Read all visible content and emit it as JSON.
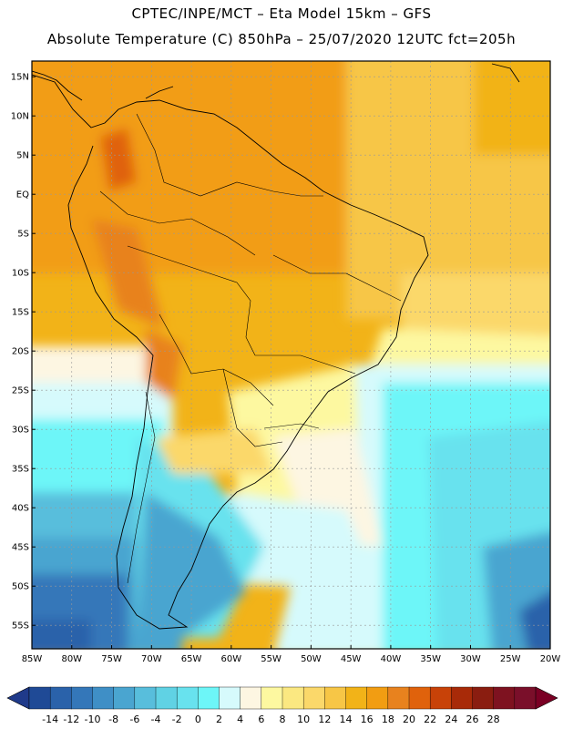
{
  "header": {
    "line1": "CPTEC/INPE/MCT –  Eta Model 15km – GFS",
    "line2": "Absolute Temperature (C) 850hPa – 25/07/2020 12UTC fct=205h"
  },
  "map": {
    "lon_range": [
      -85,
      -20
    ],
    "lat_range": [
      -58,
      17
    ],
    "lat_labels": [
      "15N",
      "10N",
      "5N",
      "EQ",
      "5S",
      "10S",
      "15S",
      "20S",
      "25S",
      "30S",
      "35S",
      "40S",
      "45S",
      "50S",
      "55S"
    ],
    "lat_values": [
      15,
      10,
      5,
      0,
      -5,
      -10,
      -15,
      -20,
      -25,
      -30,
      -35,
      -40,
      -45,
      -50,
      -55
    ],
    "lon_labels": [
      "85W",
      "80W",
      "75W",
      "70W",
      "65W",
      "60W",
      "55W",
      "50W",
      "45W",
      "40W",
      "35W",
      "30W",
      "25W",
      "20W"
    ],
    "lon_values": [
      -85,
      -80,
      -75,
      -70,
      -65,
      -60,
      -55,
      -50,
      -45,
      -40,
      -35,
      -30,
      -25,
      -20
    ],
    "gridlines": true,
    "grid_color": "#999999"
  },
  "colorbar": {
    "labels": [
      "-14",
      "-12",
      "-10",
      "-8",
      "-6",
      "-4",
      "-2",
      "0",
      "2",
      "4",
      "6",
      "8",
      "10",
      "12",
      "14",
      "16",
      "18",
      "20",
      "22",
      "24",
      "26",
      "28"
    ],
    "colors": [
      "#1f4a96",
      "#2a62aa",
      "#3477b9",
      "#3f8fc6",
      "#4aa5d0",
      "#58bedc",
      "#60d2e4",
      "#68e2ee",
      "#6df6f8",
      "#d6fafc",
      "#fdf6e2",
      "#fdf8a0",
      "#fbe881",
      "#fbd86a",
      "#f7c646",
      "#f2b318",
      "#f29d12",
      "#e8821e",
      "#e0620c",
      "#c84208",
      "#a82a08",
      "#8a1d10",
      "#7e1220",
      "#7a0f2a"
    ],
    "min_color": "#1f3a8a",
    "max_color": "#7a0024"
  }
}
